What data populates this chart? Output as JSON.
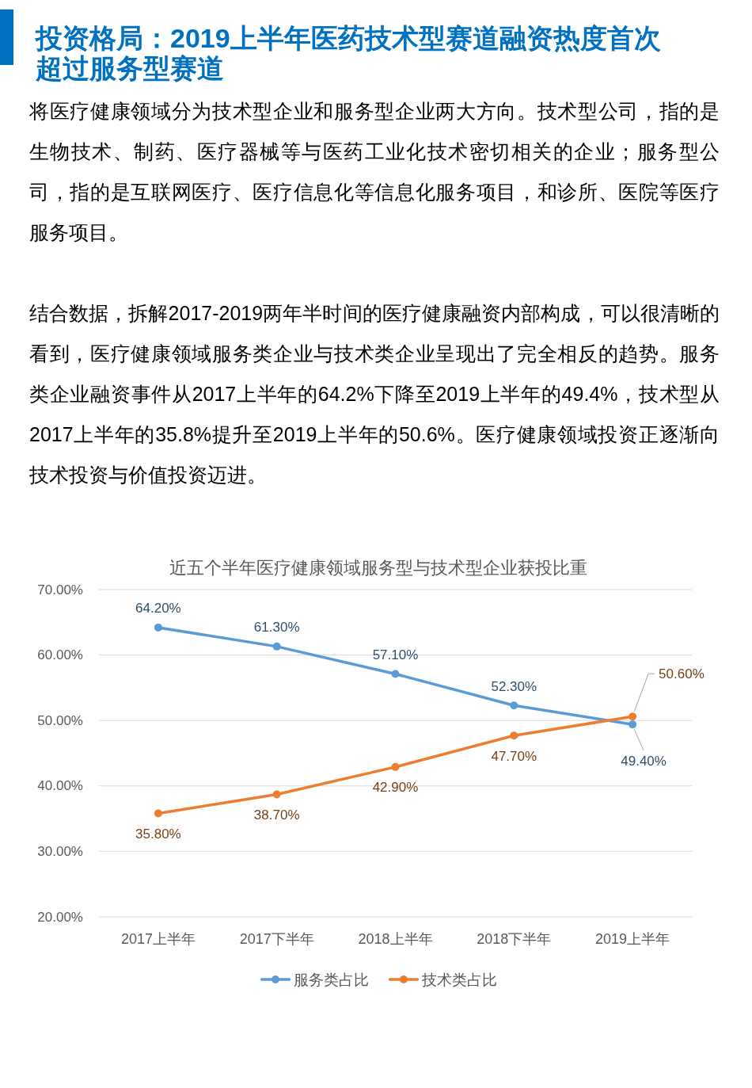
{
  "chart_data": {
    "type": "line",
    "title": "投资格局：2019上半年医药技术型赛道融资热度首次超过服务型赛道",
    "subtitle": "近五个半年医疗健康领域服务型与技术型企业获投比重",
    "annotations": [
      "将医疗健康领域分为技术型企业和服务型企业两大方向。技术型公司，指的是生物技术、制药、医疗器械等与医药工业化技术密切相关的企业；服务型公司，指的是互联网医疗、医疗信息化等信息化服务项目，和诊所、医院等医疗服务项目。",
      "结合数据，拆解2017-2019两年半时间的医疗健康融资内部构成，可以很清晰的看到，医疗健康领域服务类企业与技术类企业呈现出了完全相反的趋势。服务类企业融资事件从2017上半年的64.2%下降至2019上半年的49.4%，技术型从2017上半年的35.8%提升至2019上半年的50.6%。医疗健康领域投资正逐渐向技术投资与价值投资迈进。"
    ],
    "categories": [
      "2017上半年",
      "2017下半年",
      "2018上半年",
      "2018下半年",
      "2019上半年"
    ],
    "series": [
      {
        "name": "服务类占比",
        "color": "#5b9bd5",
        "values": [
          64.2,
          61.3,
          57.1,
          52.3,
          49.4
        ],
        "value_labels": [
          "64.20%",
          "61.30%",
          "57.10%",
          "52.30%",
          "49.40%"
        ]
      },
      {
        "name": "技术类占比",
        "color": "#ed7d31",
        "values": [
          35.8,
          38.7,
          42.9,
          47.7,
          50.6
        ],
        "value_labels": [
          "35.80%",
          "38.70%",
          "42.90%",
          "47.70%",
          "50.60%"
        ]
      }
    ],
    "ylim": [
      20,
      70
    ],
    "yticks": [
      {
        "value": 20,
        "label": "20.00%"
      },
      {
        "value": 30,
        "label": "30.00%"
      },
      {
        "value": 40,
        "label": "40.00%"
      },
      {
        "value": 50,
        "label": "50.00%"
      },
      {
        "value": 60,
        "label": "60.00%"
      },
      {
        "value": 70,
        "label": "70.00%"
      }
    ],
    "grid": "y",
    "legend": "bottom",
    "marker": "circle",
    "line_style": "solid"
  }
}
